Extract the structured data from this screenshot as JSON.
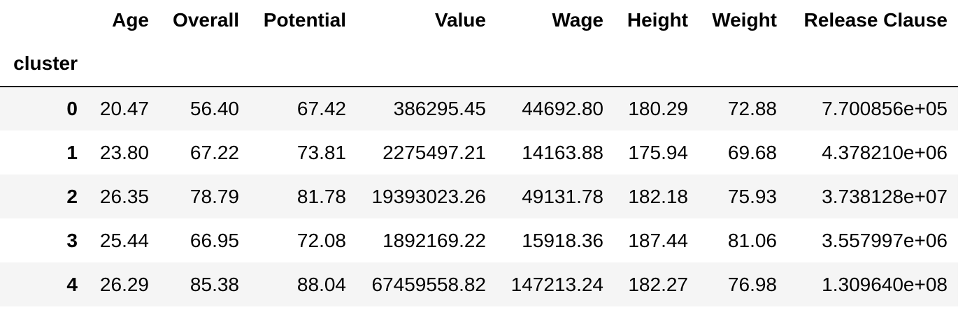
{
  "table": {
    "index_name": "cluster",
    "columns": [
      "Age",
      "Overall",
      "Potential",
      "Value",
      "Wage",
      "Height",
      "Weight",
      "Release Clause"
    ],
    "rows": [
      {
        "index": "0",
        "cells": [
          "20.47",
          "56.40",
          "67.42",
          "386295.45",
          "44692.80",
          "180.29",
          "72.88",
          "7.700856e+05"
        ]
      },
      {
        "index": "1",
        "cells": [
          "23.80",
          "67.22",
          "73.81",
          "2275497.21",
          "14163.88",
          "175.94",
          "69.68",
          "4.378210e+06"
        ]
      },
      {
        "index": "2",
        "cells": [
          "26.35",
          "78.79",
          "81.78",
          "19393023.26",
          "49131.78",
          "182.18",
          "75.93",
          "3.738128e+07"
        ]
      },
      {
        "index": "3",
        "cells": [
          "25.44",
          "66.95",
          "72.08",
          "1892169.22",
          "15918.36",
          "187.44",
          "81.06",
          "3.557997e+06"
        ]
      },
      {
        "index": "4",
        "cells": [
          "26.29",
          "85.38",
          "88.04",
          "67459558.82",
          "147213.24",
          "182.27",
          "76.98",
          "1.309640e+08"
        ]
      }
    ]
  },
  "colors": {
    "striped_row": "#f5f5f5",
    "plain_row": "#ffffff",
    "header_rule": "#000000",
    "text": "#000000"
  }
}
